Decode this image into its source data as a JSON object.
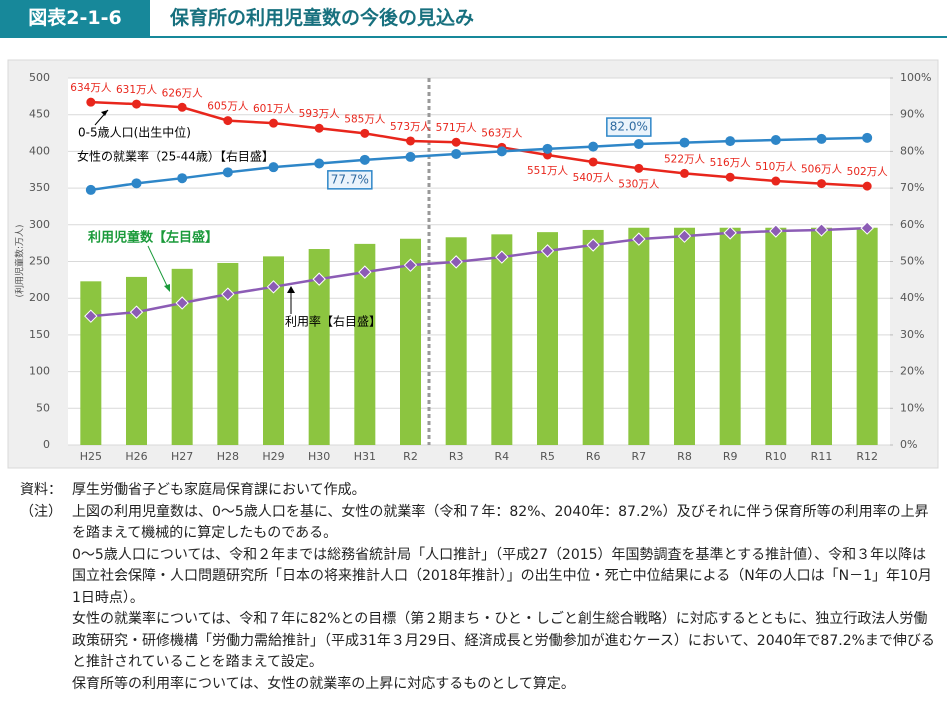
{
  "header": {
    "figure": "図表2-1-6",
    "title": "保育所の利用児童数の今後の見込み"
  },
  "chart_data": {
    "type": "combo",
    "y_axis_label": "(利用児童数:万人)",
    "categories": [
      "H25",
      "H26",
      "H27",
      "H28",
      "H29",
      "H30",
      "H31",
      "R2",
      "R3",
      "R4",
      "R5",
      "R6",
      "R7",
      "R8",
      "R9",
      "R10",
      "R11",
      "R12"
    ],
    "ylim": [
      0,
      500
    ],
    "yticks": [
      0,
      50,
      100,
      150,
      200,
      250,
      300,
      350,
      400,
      450,
      500
    ],
    "y2lim": [
      0,
      100
    ],
    "y2ticks": [
      {
        "value": 0,
        "label": "0%"
      },
      {
        "value": 10,
        "label": "10%"
      },
      {
        "value": 20,
        "label": "20%"
      },
      {
        "value": 30,
        "label": "30%"
      },
      {
        "value": 40,
        "label": "40%"
      },
      {
        "value": 50,
        "label": "50%"
      },
      {
        "value": 60,
        "label": "60%"
      },
      {
        "value": 70,
        "label": "70%"
      },
      {
        "value": 80,
        "label": "80%"
      },
      {
        "value": 90,
        "label": "90%"
      },
      {
        "value": 100,
        "label": "100%"
      }
    ],
    "y3lim": [
      95,
      672
    ],
    "grid": true,
    "series": [
      {
        "name": "利用児童数【左目盛】",
        "type": "bar",
        "color": "#8cc540",
        "values": [
          223,
          229,
          240,
          248,
          257,
          267,
          274,
          281,
          283,
          287,
          290,
          293,
          296,
          296,
          296,
          296,
          296,
          296
        ]
      },
      {
        "name": "0-5歳人口(出生中位)",
        "type": "line",
        "axis": "y3",
        "color": "#e8261c",
        "values": [
          634,
          631,
          626,
          605,
          601,
          593,
          585,
          573,
          571,
          563,
          551,
          540,
          530,
          522,
          516,
          510,
          506,
          502
        ],
        "value_labels": [
          "634万人",
          "631万人",
          "626万人",
          "605万人",
          "601万人",
          "593万人",
          "585万人",
          "573万人",
          "571万人",
          "563万人",
          "551万人",
          "540万人",
          "530万人",
          "522万人",
          "516万人",
          "510万人",
          "506万人",
          "502万人"
        ]
      },
      {
        "name": "女性の就業率（25-44歳）【右目盛】",
        "type": "line",
        "axis": "y2",
        "color": "#2e86c8",
        "values": [
          69.5,
          71.3,
          72.7,
          74.3,
          75.7,
          76.7,
          77.7,
          78.5,
          79.3,
          80.0,
          80.7,
          81.3,
          82.0,
          82.4,
          82.8,
          83.1,
          83.4,
          83.7
        ],
        "value_labels": [
          null,
          null,
          null,
          null,
          null,
          null,
          "77.7%",
          null,
          null,
          null,
          null,
          null,
          "82.0%",
          null,
          null,
          null,
          null,
          null
        ]
      },
      {
        "name": "利用率【右目盛】",
        "type": "line",
        "axis": "y2",
        "color": "#8c5cb5",
        "values": [
          35.1,
          36.2,
          38.7,
          41.1,
          43.1,
          45.2,
          47.1,
          49.0,
          49.9,
          51.2,
          52.9,
          54.5,
          56.1,
          56.9,
          57.8,
          58.3,
          58.6,
          59.1
        ]
      }
    ]
  },
  "notes": {
    "source_label": "資料：",
    "source": "厚生労働省子ども家庭局保育課において作成。",
    "note_label": "（注）",
    "paragraphs": [
      "上図の利用児童数は、0～5歳人口を基に、女性の就業率（令和７年：82%、2040年：87.2%）及びそれに伴う保育所等の利用率の上昇を踏まえて機械的に算定したものである。",
      "0～5歳人口については、令和２年までは総務省統計局「人口推計」（平成27（2015）年国勢調査を基準とする推計値）、令和３年以降は国立社会保障・人口問題研究所「日本の将来推計人口（2018年推計）」の出生中位・死亡中位結果による（N年の人口は「N－1」年10月1日時点）。",
      "女性の就業率については、令和７年に82%との目標（第２期まち・ひと・しごと創生総合戦略）に対応するとともに、独立行政法人労働政策研究・研修機構「労働力需給推計」（平成31年３月29日、経済成長と労働参加が進むケース）において、2040年で87.2%まで伸びると推計されていることを踏まえて設定。",
      "保育所等の利用率については、女性の就業率の上昇に対応するものとして算定。"
    ]
  }
}
